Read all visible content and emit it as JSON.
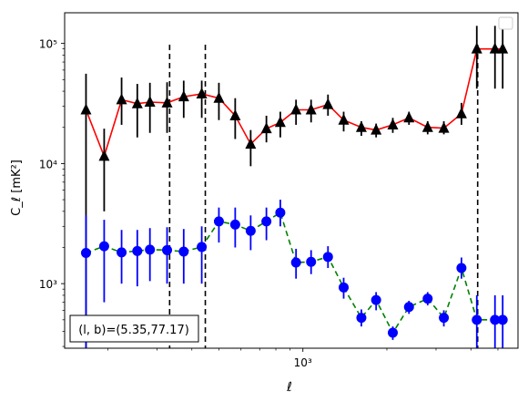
{
  "chart_data": {
    "type": "scatter",
    "xlabel": "ℓ",
    "ylabel": "C_ℓ  [mK²]",
    "x_scale": "log",
    "y_scale": "log",
    "xlim": [
      140,
      5900
    ],
    "ylim": [
      290,
      180000
    ],
    "y_ticks": [
      {
        "value": 1000,
        "label": "10³"
      },
      {
        "value": 10000,
        "label": "10⁴"
      },
      {
        "value": 100000,
        "label": "10⁵"
      }
    ],
    "x_ticks": [
      {
        "value": 1000,
        "label": "10³"
      }
    ],
    "vlines": [
      333,
      447,
      4230
    ],
    "annotation": "(l, b)=(5.35,77.17)",
    "legend": {
      "position": "top-right",
      "entries": []
    },
    "series": [
      {
        "marker": "triangle",
        "marker_color": "#000000",
        "line_color": "#ff0000",
        "line_style": "solid",
        "x": [
          167,
          194,
          224,
          255,
          283,
          326,
          374,
          434,
          500,
          572,
          650,
          740,
          830,
          945,
          1070,
          1230,
          1400,
          1620,
          1830,
          2100,
          2400,
          2800,
          3200,
          3700,
          4200,
          4880,
          5200
        ],
        "y": [
          28000,
          11500,
          34000,
          31500,
          32500,
          32000,
          36000,
          38000,
          35000,
          25000,
          14500,
          19500,
          22000,
          28000,
          28000,
          31000,
          23000,
          20000,
          19000,
          21000,
          24000,
          20000,
          19700,
          26000,
          90000,
          90000,
          90000
        ],
        "y_low": [
          290,
          4000,
          21000,
          16500,
          18000,
          18000,
          24000,
          24000,
          23000,
          16000,
          9500,
          15000,
          16500,
          21000,
          22000,
          25000,
          18500,
          17000,
          16500,
          18000,
          21000,
          17500,
          17500,
          21000,
          42000,
          42000,
          42000
        ],
        "y_high": [
          56000,
          19500,
          52000,
          46000,
          47000,
          47500,
          49000,
          49000,
          47000,
          35000,
          19000,
          25000,
          27000,
          34000,
          34000,
          37500,
          27000,
          22500,
          21500,
          24000,
          27000,
          22500,
          22500,
          32000,
          140000,
          140000,
          140000
        ]
      },
      {
        "marker": "circle",
        "marker_color": "#0000ff",
        "line_color": "#008000",
        "line_style": "dashed",
        "x": [
          167,
          194,
          224,
          255,
          283,
          326,
          374,
          434,
          500,
          572,
          650,
          740,
          830,
          945,
          1070,
          1230,
          1400,
          1620,
          1830,
          2100,
          2400,
          2800,
          3200,
          3700,
          4200,
          4880,
          5200
        ],
        "y": [
          1800,
          2050,
          1820,
          1870,
          1920,
          1900,
          1850,
          2020,
          3300,
          3100,
          2750,
          3300,
          3900,
          1500,
          1520,
          1670,
          930,
          520,
          730,
          390,
          640,
          750,
          520,
          1350,
          500,
          500,
          500
        ],
        "y_low": [
          290,
          700,
          1000,
          950,
          1050,
          1000,
          1000,
          1000,
          2200,
          2000,
          1900,
          2300,
          3000,
          1100,
          1200,
          1350,
          750,
          440,
          600,
          340,
          560,
          660,
          440,
          1100,
          290,
          290,
          290
        ],
        "y_high": [
          3700,
          3400,
          2800,
          2800,
          2900,
          2950,
          2850,
          3000,
          4300,
          4300,
          3700,
          4300,
          5000,
          1950,
          1900,
          2050,
          1120,
          610,
          850,
          440,
          720,
          850,
          600,
          1650,
          800,
          800,
          800
        ]
      }
    ]
  }
}
